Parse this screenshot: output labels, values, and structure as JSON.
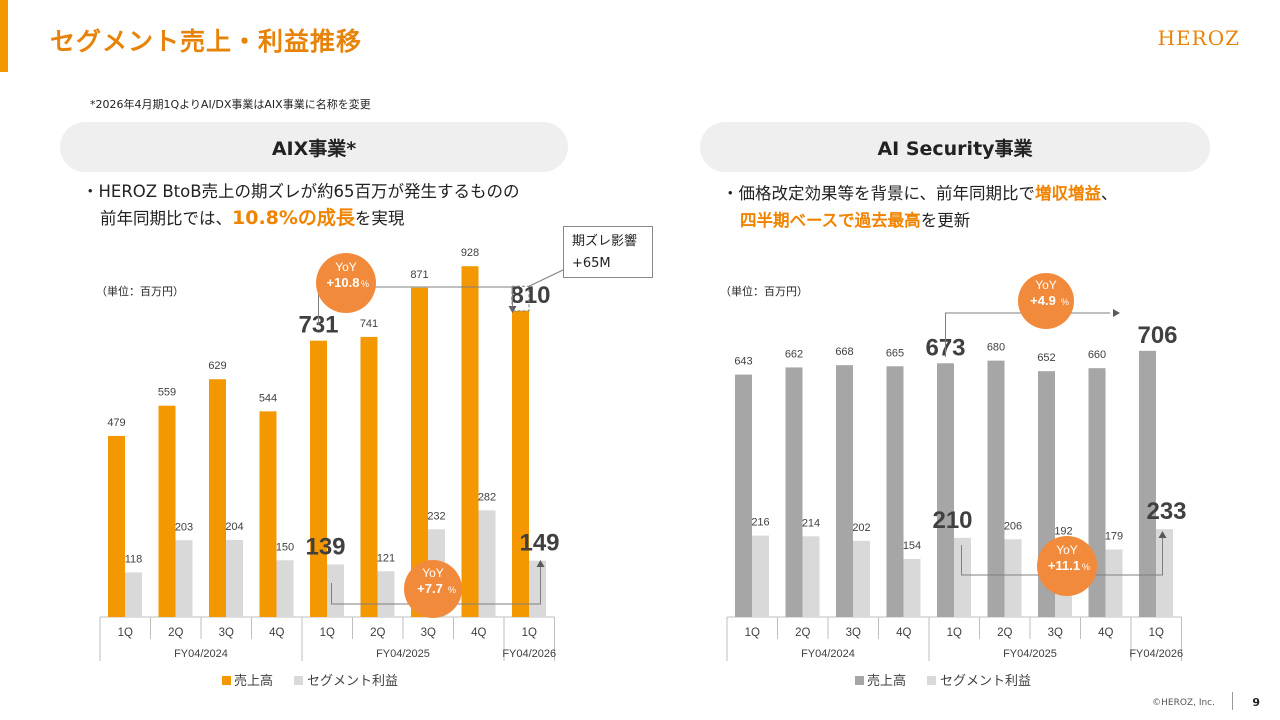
{
  "header": {
    "title": "セグメント売上・利益推移",
    "logo": "HEROZ",
    "note": "*2026年4月期1QよりAI/DX事業はAIX事業に名称を変更"
  },
  "left": {
    "pill": "AIX事業*",
    "bullet_line1": "・HEROZ BtoB売上の期ズレが約65百万が発生するものの",
    "bullet_line2_pre": "前年同期比では、",
    "bullet_line2_hl": "10.8%の成長",
    "bullet_line2_post": "を実現",
    "unit": "（単位：百万円）",
    "callout_title": "期ズレ影響",
    "callout_value": "+65M"
  },
  "right": {
    "pill": "AI Security事業",
    "bullet_line1_pre": "・価格改定効果等を背景に、前年同期比で",
    "bullet_line1_hl": "増収増益",
    "bullet_line1_post": "、",
    "bullet_line2_hl": "四半期ベースで過去最高",
    "bullet_line2_post": "を更新",
    "unit": "（単位：百万円）"
  },
  "footer": {
    "copyright": "©HEROZ, Inc.",
    "page": "9"
  },
  "colors": {
    "orange": "#F39800",
    "light_gray": "#D9D9D9",
    "mid_gray": "#A6A6A6",
    "badge": "#F28A3B"
  },
  "chart_data": [
    {
      "type": "bar",
      "categories": [
        "1Q",
        "2Q",
        "3Q",
        "4Q",
        "1Q",
        "2Q",
        "3Q",
        "4Q",
        "1Q"
      ],
      "fiscal_years": [
        {
          "label": "FY04/2024",
          "span": 4
        },
        {
          "label": "FY04/2025",
          "span": 4
        },
        {
          "label": "FY04/2026",
          "span": 1
        }
      ],
      "series": [
        {
          "name": "売上高",
          "color": "#F39800",
          "values": [
            479,
            559,
            629,
            544,
            731,
            741,
            871,
            928,
            810
          ]
        },
        {
          "name": "セグメント利益",
          "color": "#D9D9D9",
          "values": [
            118,
            203,
            204,
            150,
            139,
            121,
            232,
            282,
            149
          ]
        }
      ],
      "emphasized_indices": [
        4,
        8
      ],
      "yoy_badges": [
        {
          "label": "YoY",
          "value": "+10.8",
          "unit": "%"
        },
        {
          "label": "YoY",
          "value": "+7.7",
          "unit": "%"
        }
      ],
      "legend": "bottom-center"
    },
    {
      "type": "bar",
      "categories": [
        "1Q",
        "2Q",
        "3Q",
        "4Q",
        "1Q",
        "2Q",
        "3Q",
        "4Q",
        "1Q"
      ],
      "fiscal_years": [
        {
          "label": "FY04/2024",
          "span": 4
        },
        {
          "label": "FY04/2025",
          "span": 4
        },
        {
          "label": "FY04/2026",
          "span": 1
        }
      ],
      "series": [
        {
          "name": "売上高",
          "color": "#A6A6A6",
          "values": [
            643,
            662,
            668,
            665,
            673,
            680,
            652,
            660,
            706
          ]
        },
        {
          "name": "セグメント利益",
          "color": "#D9D9D9",
          "values": [
            216,
            214,
            202,
            154,
            210,
            206,
            192,
            179,
            233
          ]
        }
      ],
      "emphasized_indices": [
        4,
        8
      ],
      "yoy_badges": [
        {
          "label": "YoY",
          "value": "+4.9",
          "unit": "%"
        },
        {
          "label": "YoY",
          "value": "+11.1",
          "unit": "%"
        }
      ],
      "legend": "bottom-center"
    }
  ]
}
